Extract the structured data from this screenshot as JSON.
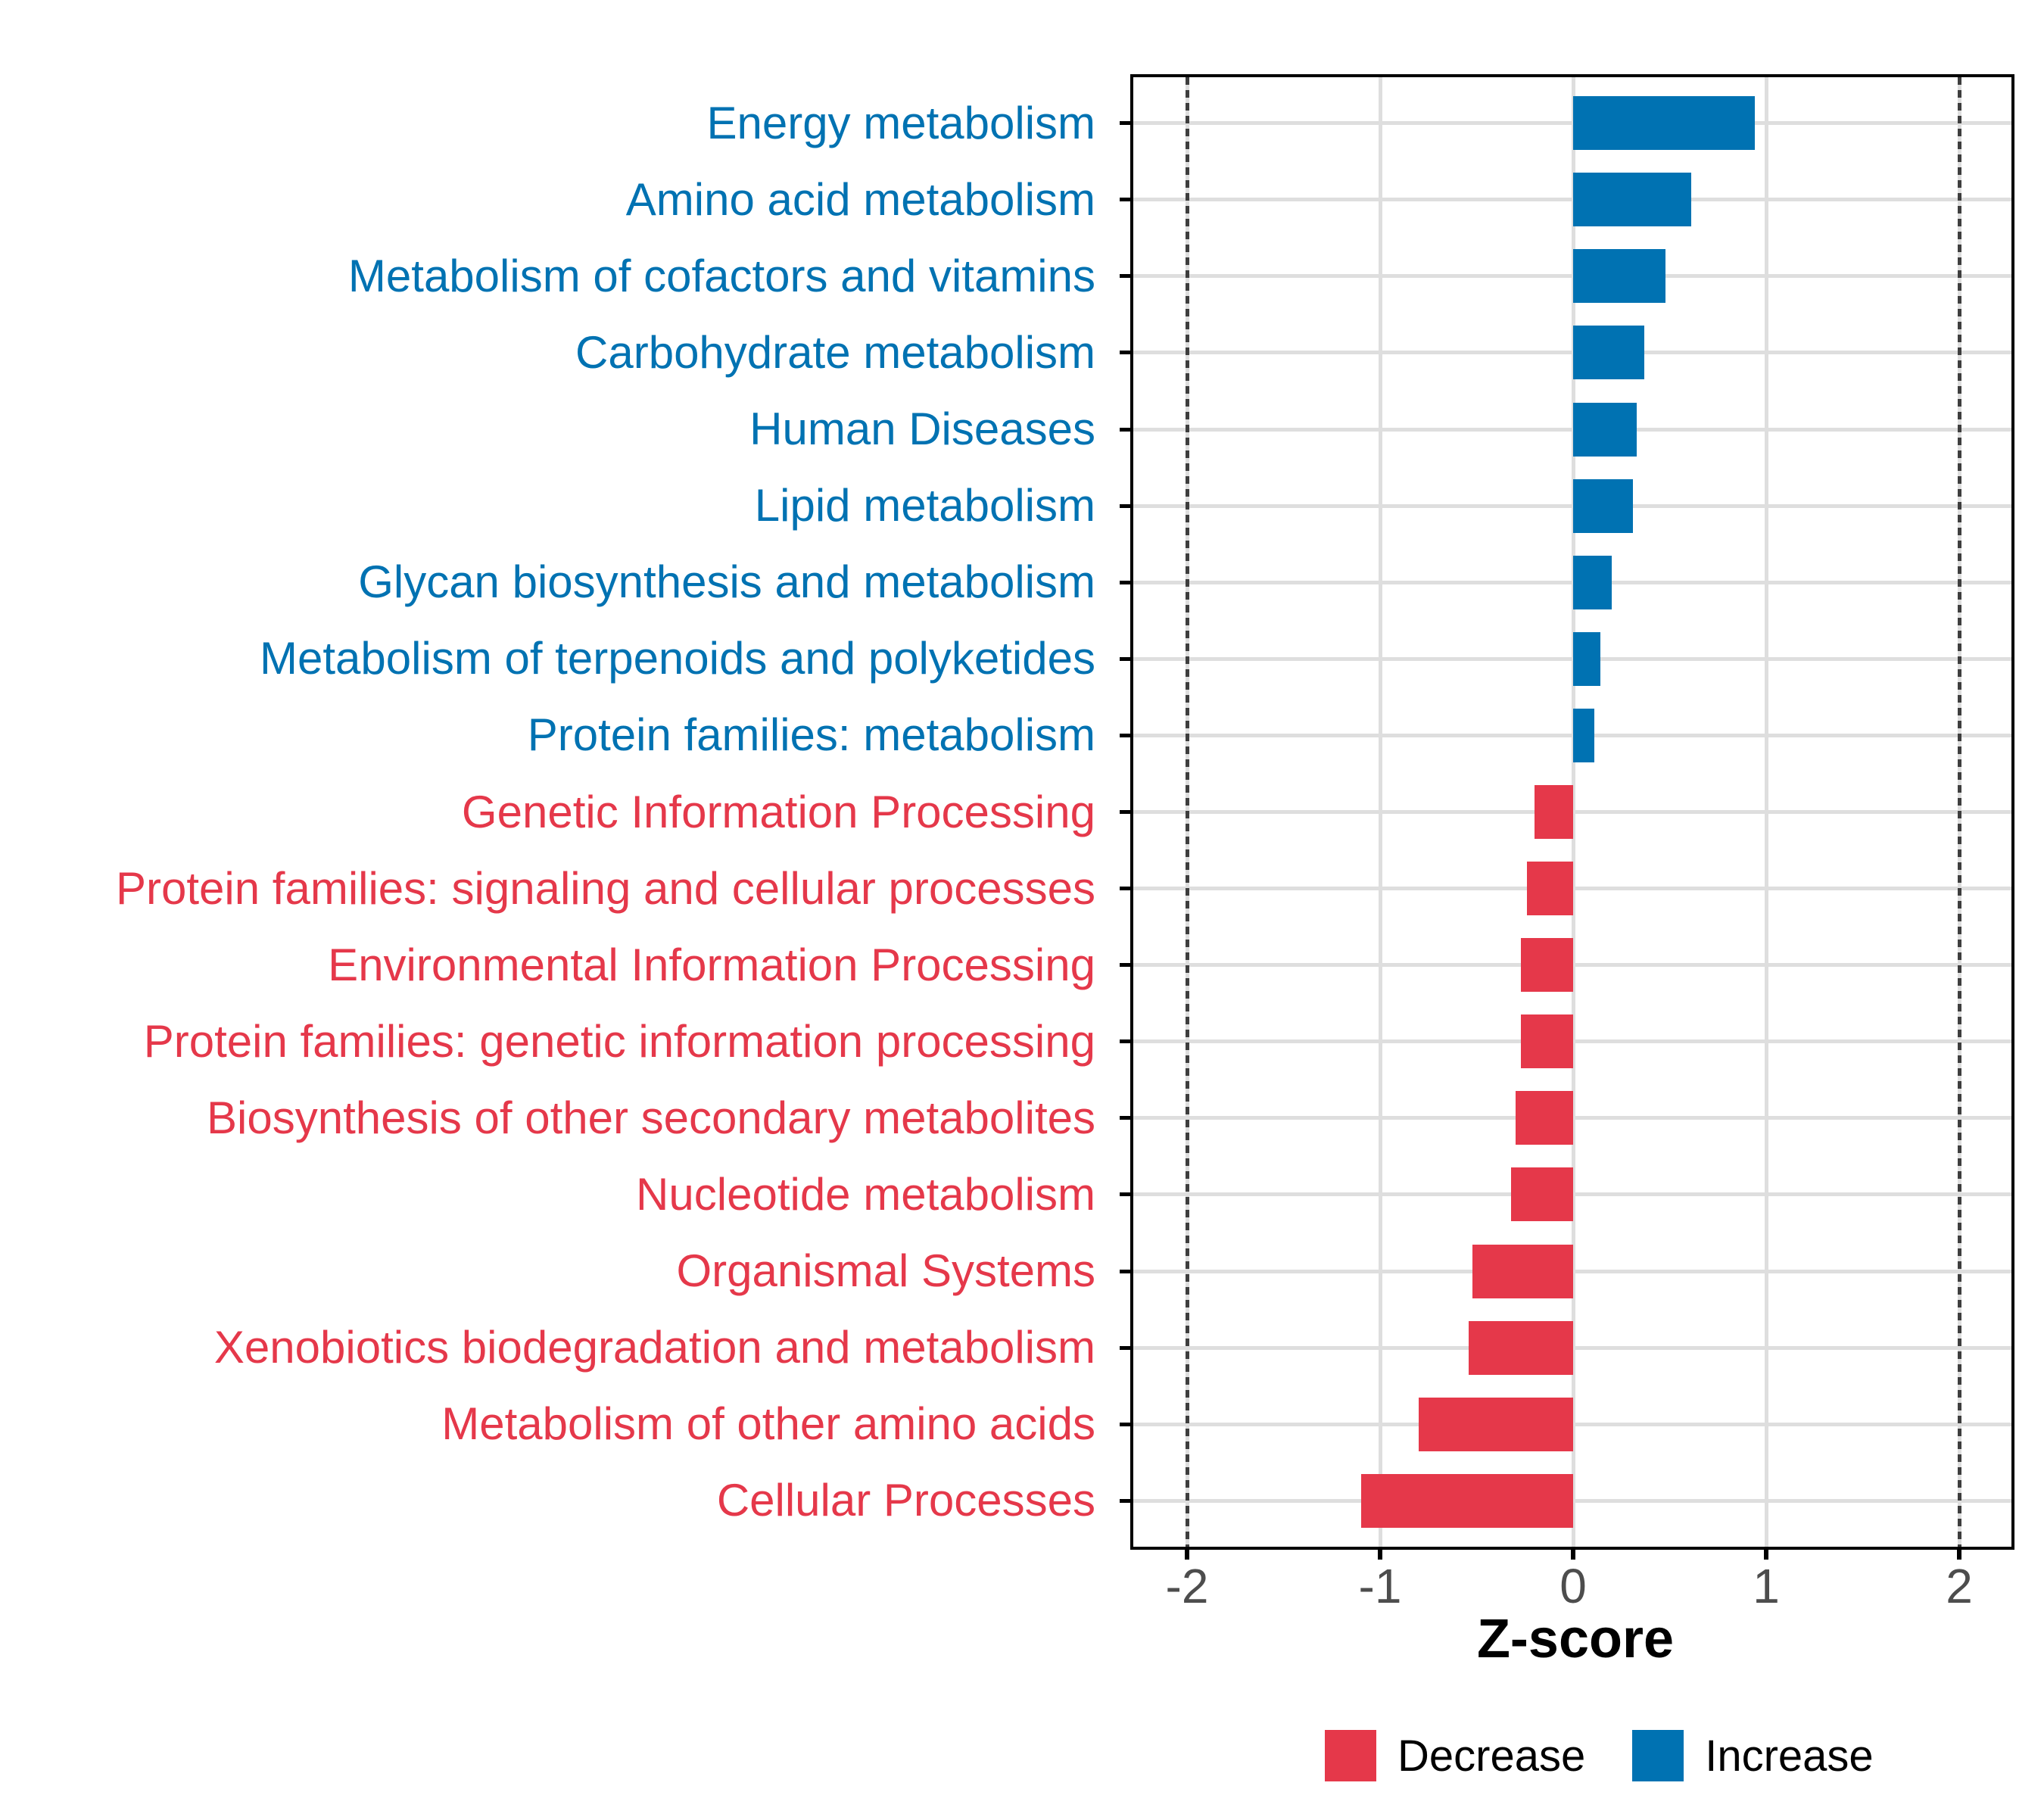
{
  "chart_data": {
    "type": "bar",
    "orientation": "horizontal",
    "title": "",
    "xlabel": "Z-score",
    "xlim": [
      -2.28,
      2.26
    ],
    "x_ticks": [
      -2,
      -1,
      0,
      1,
      2
    ],
    "x_tick_labels": [
      "-2",
      "-1",
      "0",
      "1",
      "2"
    ],
    "reference_lines": [
      -2,
      2
    ],
    "grid": "on",
    "legend_position": "bottom",
    "legend": [
      {
        "label": "Decrease",
        "color": "#E5384A"
      },
      {
        "label": "Increase",
        "color": "#0072B2"
      }
    ],
    "categories": [
      {
        "label": "Energy metabolism",
        "value": 0.94,
        "direction": "Increase"
      },
      {
        "label": "Amino acid metabolism",
        "value": 0.61,
        "direction": "Increase"
      },
      {
        "label": "Metabolism of cofactors and vitamins",
        "value": 0.48,
        "direction": "Increase"
      },
      {
        "label": "Carbohydrate metabolism",
        "value": 0.37,
        "direction": "Increase"
      },
      {
        "label": "Human Diseases",
        "value": 0.33,
        "direction": "Increase"
      },
      {
        "label": "Lipid metabolism",
        "value": 0.31,
        "direction": "Increase"
      },
      {
        "label": "Glycan biosynthesis and metabolism",
        "value": 0.2,
        "direction": "Increase"
      },
      {
        "label": "Metabolism of terpenoids and polyketides",
        "value": 0.14,
        "direction": "Increase"
      },
      {
        "label": "Protein families: metabolism",
        "value": 0.11,
        "direction": "Increase"
      },
      {
        "label": "Genetic Information Processing",
        "value": -0.2,
        "direction": "Decrease"
      },
      {
        "label": "Protein families: signaling and cellular processes",
        "value": -0.24,
        "direction": "Decrease"
      },
      {
        "label": "Environmental Information Processing",
        "value": -0.27,
        "direction": "Decrease"
      },
      {
        "label": "Protein families: genetic information processing",
        "value": -0.27,
        "direction": "Decrease"
      },
      {
        "label": "Biosynthesis of other secondary metabolites",
        "value": -0.3,
        "direction": "Decrease"
      },
      {
        "label": "Nucleotide metabolism",
        "value": -0.32,
        "direction": "Decrease"
      },
      {
        "label": "Organismal Systems",
        "value": -0.52,
        "direction": "Decrease"
      },
      {
        "label": "Xenobiotics biodegradation and metabolism",
        "value": -0.54,
        "direction": "Decrease"
      },
      {
        "label": "Metabolism of other amino acids",
        "value": -0.8,
        "direction": "Decrease"
      },
      {
        "label": "Cellular Processes",
        "value": -1.1,
        "direction": "Decrease"
      }
    ]
  },
  "colors": {
    "increase": "#0072B2",
    "decrease": "#E5384A",
    "gridline": "#DEDEDE",
    "refline": "#3E3E3E",
    "axis_text": "#4D4D4D",
    "panel_border": "#000000"
  }
}
